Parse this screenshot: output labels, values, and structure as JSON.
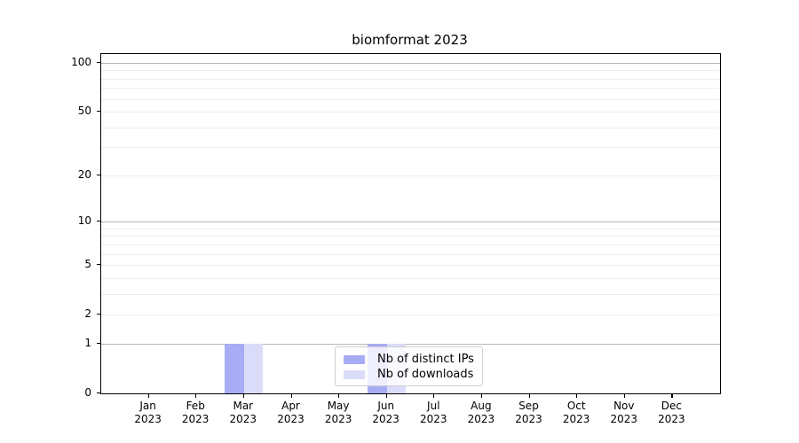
{
  "chart_data": {
    "type": "bar",
    "title": "biomformat 2023",
    "categories": [
      "Jan 2023",
      "Feb 2023",
      "Mar 2023",
      "Apr 2023",
      "May 2023",
      "Jun 2023",
      "Jul 2023",
      "Aug 2023",
      "Sep 2023",
      "Oct 2023",
      "Nov 2023",
      "Dec 2023"
    ],
    "x_months": [
      "Jan",
      "Feb",
      "Mar",
      "Apr",
      "May",
      "Jun",
      "Jul",
      "Aug",
      "Sep",
      "Oct",
      "Nov",
      "Dec"
    ],
    "x_year": "2023",
    "series": [
      {
        "name": "Nb of distinct IPs",
        "color": "#a8acf4",
        "values": [
          0,
          0,
          1,
          0,
          0,
          1,
          0,
          0,
          0,
          0,
          0,
          0
        ]
      },
      {
        "name": "Nb of downloads",
        "color": "#dbdcf9",
        "values": [
          0,
          0,
          1,
          0,
          0,
          1,
          0,
          0,
          0,
          0,
          0,
          0
        ]
      }
    ],
    "yscale": "log1p",
    "ylim": [
      0,
      113
    ],
    "yticks": [
      0,
      1,
      2,
      5,
      10,
      20,
      50,
      100
    ],
    "grid": {
      "major_at": [
        1,
        10,
        100
      ],
      "minor_at": [
        2,
        3,
        4,
        5,
        6,
        7,
        8,
        9,
        20,
        30,
        40,
        50,
        60,
        70,
        80,
        90
      ],
      "major_color": "#b5b5b5",
      "minor_color": "#ededed"
    },
    "legend_position": "lower center inside",
    "xlabel": "",
    "ylabel": ""
  }
}
